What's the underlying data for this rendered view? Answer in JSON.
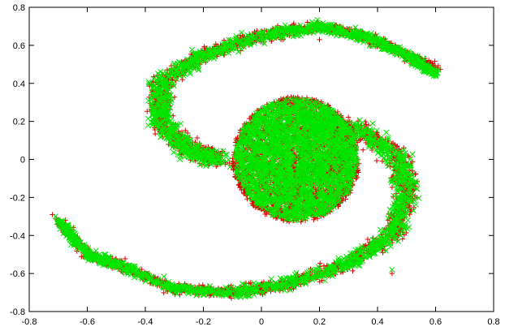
{
  "chart_data": {
    "type": "scatter",
    "title": "",
    "xlabel": "",
    "ylabel": "",
    "xlim": [
      -0.8,
      0.8
    ],
    "ylim": [
      -0.8,
      0.8
    ],
    "grid": false,
    "legend": "none",
    "x_ticks": [
      "-0.8",
      "-0.6",
      "-0.4",
      "-0.2",
      "0",
      "0.2",
      "0.4",
      "0.6",
      "0.8"
    ],
    "y_ticks": [
      "0.8",
      "0.6",
      "0.4",
      "0.2",
      "0",
      "-0.2",
      "-0.4",
      "-0.6",
      "-0.8"
    ],
    "series": [
      {
        "marker": "plus",
        "color": "#e00000",
        "regions": [
          {
            "shape": "ellipse",
            "cx": 0.12,
            "cy": 0.0,
            "rx": 0.22,
            "ry": 0.33
          },
          {
            "shape": "spiral-arm",
            "points": [
              [
                0.15,
                0.2
              ],
              [
                0.35,
                0.15
              ],
              [
                0.48,
                0.0
              ],
              [
                0.5,
                -0.2
              ],
              [
                0.45,
                -0.4
              ],
              [
                0.3,
                -0.55
              ],
              [
                0.1,
                -0.65
              ],
              [
                -0.1,
                -0.7
              ],
              [
                -0.3,
                -0.68
              ],
              [
                -0.5,
                -0.55
              ],
              [
                -0.6,
                -0.5
              ],
              [
                -0.7,
                -0.32
              ]
            ]
          },
          {
            "shape": "spiral-arm",
            "points": [
              [
                -0.15,
                0.0
              ],
              [
                -0.25,
                0.05
              ],
              [
                -0.35,
                0.2
              ],
              [
                -0.35,
                0.4
              ],
              [
                -0.2,
                0.55
              ],
              [
                0.0,
                0.65
              ],
              [
                0.2,
                0.7
              ],
              [
                0.35,
                0.65
              ],
              [
                0.5,
                0.55
              ],
              [
                0.6,
                0.48
              ]
            ]
          }
        ],
        "outliers": [
          [
            0.6,
            0.48
          ],
          [
            -0.7,
            -0.32
          ],
          [
            -0.72,
            -0.29
          ],
          [
            0.45,
            -0.6
          ],
          [
            0.2,
            0.63
          ],
          [
            0.35,
            0.05
          ]
        ]
      },
      {
        "marker": "cross",
        "color": "#00e600",
        "regions": [
          {
            "shape": "ellipse",
            "cx": 0.12,
            "cy": 0.0,
            "rx": 0.21,
            "ry": 0.32
          },
          {
            "shape": "spiral-arm",
            "points": [
              [
                0.15,
                0.2
              ],
              [
                0.35,
                0.15
              ],
              [
                0.48,
                0.0
              ],
              [
                0.5,
                -0.2
              ],
              [
                0.45,
                -0.4
              ],
              [
                0.3,
                -0.55
              ],
              [
                0.1,
                -0.65
              ],
              [
                -0.1,
                -0.7
              ],
              [
                -0.3,
                -0.68
              ],
              [
                -0.5,
                -0.55
              ],
              [
                -0.6,
                -0.5
              ],
              [
                -0.7,
                -0.32
              ]
            ]
          },
          {
            "shape": "spiral-arm",
            "points": [
              [
                -0.15,
                0.0
              ],
              [
                -0.25,
                0.05
              ],
              [
                -0.35,
                0.2
              ],
              [
                -0.35,
                0.4
              ],
              [
                -0.2,
                0.55
              ],
              [
                0.0,
                0.65
              ],
              [
                0.2,
                0.7
              ],
              [
                0.35,
                0.65
              ],
              [
                0.5,
                0.55
              ],
              [
                0.6,
                0.45
              ]
            ]
          }
        ],
        "outliers": [
          [
            0.6,
            0.45
          ],
          [
            -0.71,
            -0.3
          ],
          [
            -0.65,
            -0.36
          ],
          [
            -0.57,
            -0.48
          ],
          [
            0.45,
            -0.58
          ]
        ]
      }
    ]
  }
}
